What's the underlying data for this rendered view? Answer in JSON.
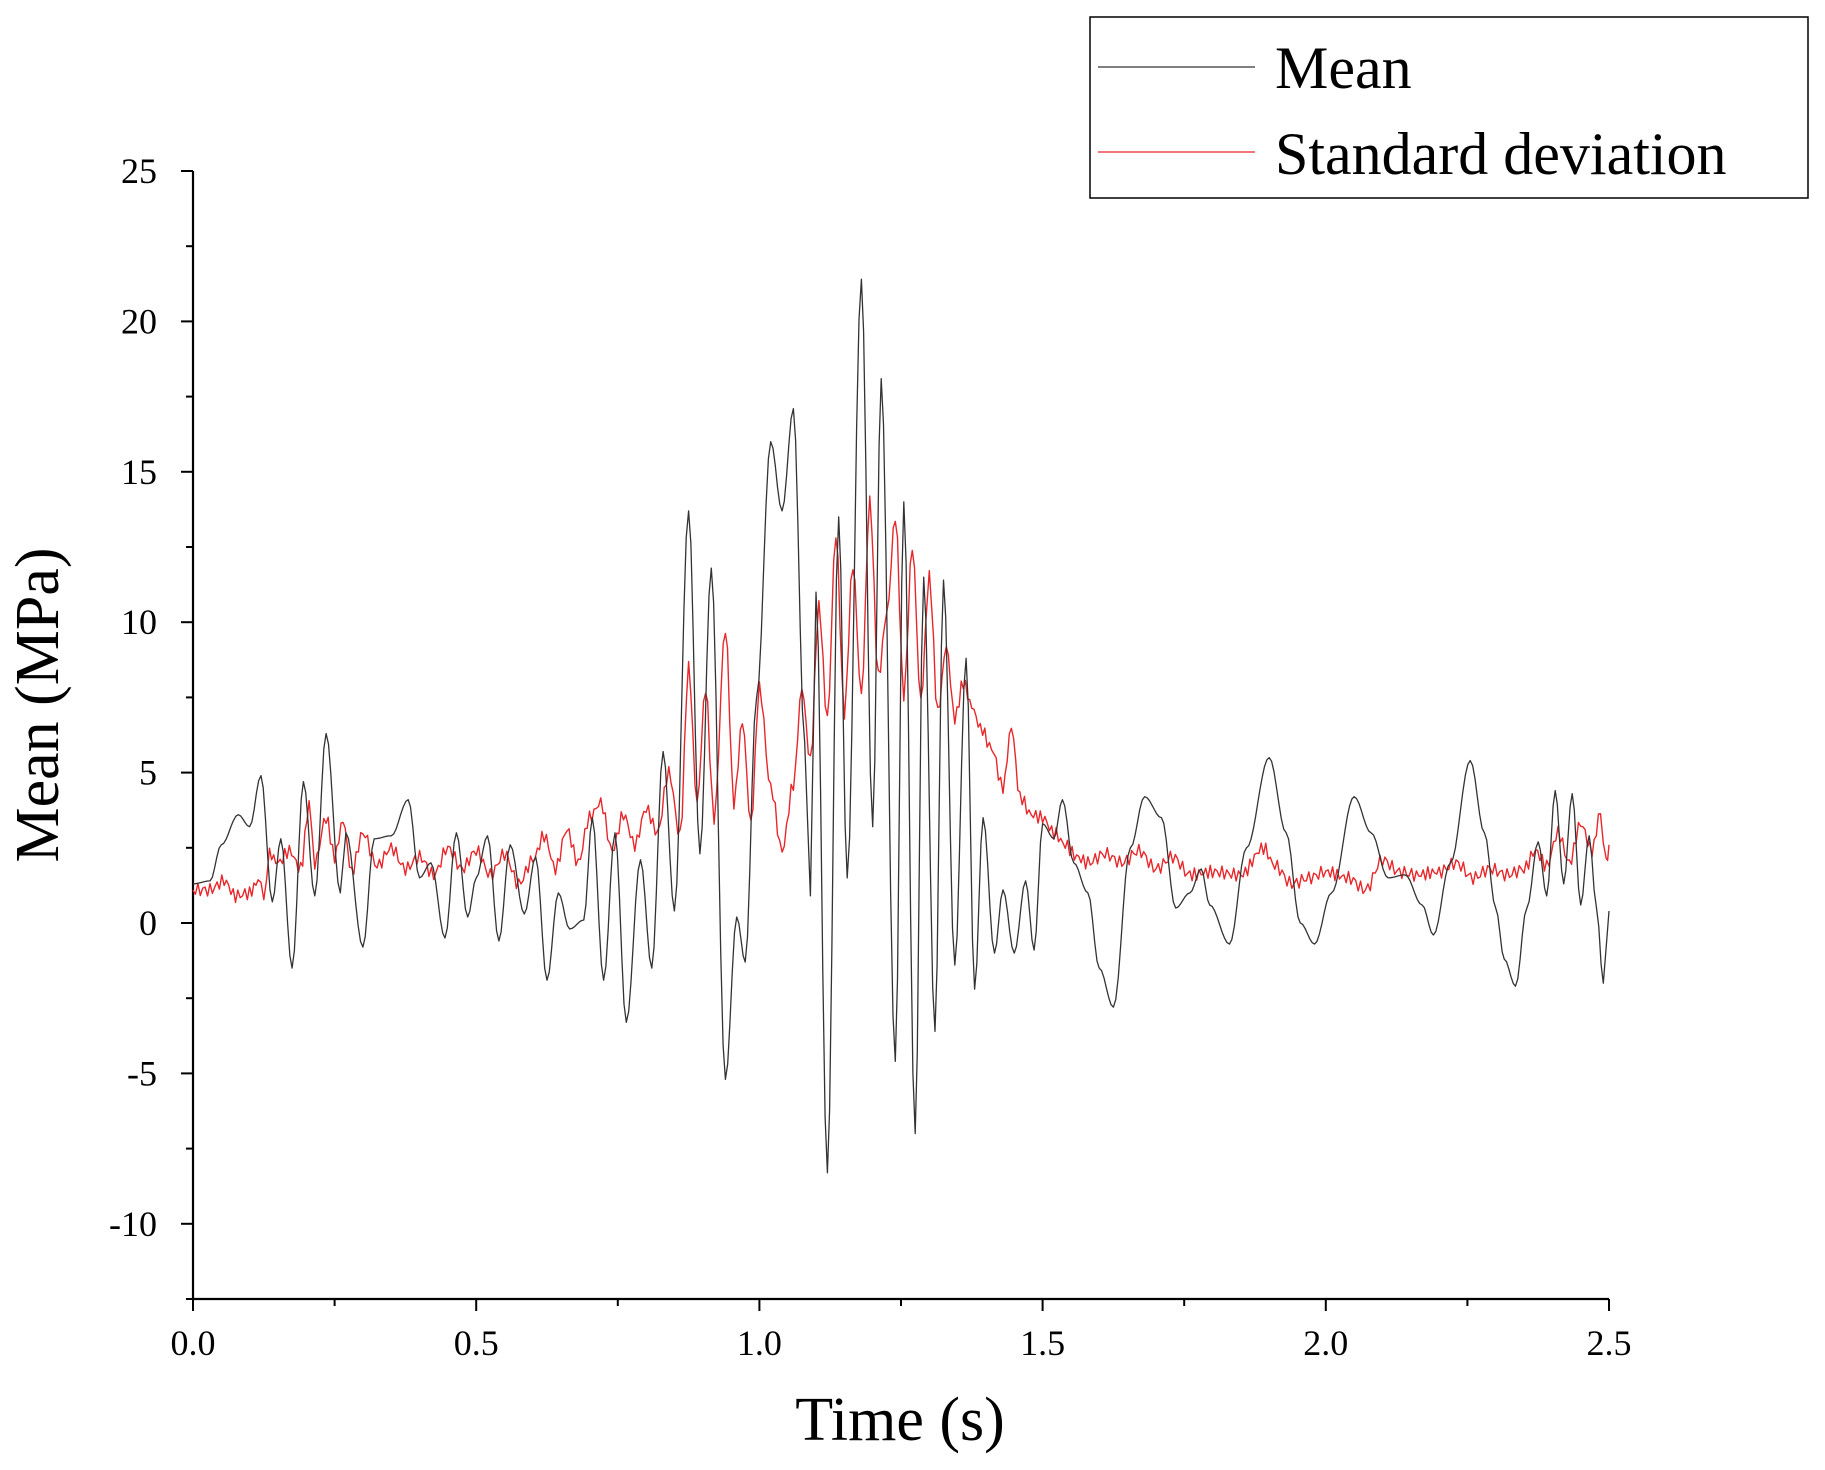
{
  "chart_data": {
    "type": "line",
    "title": "",
    "xlabel": "Time (s)",
    "ylabel": "Mean (MPa)",
    "xlim": [
      0.0,
      2.5
    ],
    "ylim": [
      -12.5,
      25
    ],
    "x_ticks": [
      0.0,
      0.5,
      1.0,
      1.5,
      2.0,
      2.5
    ],
    "x_tick_labels": [
      "0.0",
      "0.5",
      "1.0",
      "1.5",
      "2.0",
      "2.5"
    ],
    "y_ticks": [
      -10,
      -5,
      0,
      5,
      10,
      15,
      20,
      25
    ],
    "y_tick_labels": [
      "-10",
      "-5",
      "0",
      "5",
      "10",
      "15",
      "20",
      "25"
    ],
    "grid": false,
    "legend_position": "top-right",
    "series": [
      {
        "name": "Mean",
        "color": "#333333",
        "points": [
          [
            0.0,
            1.3
          ],
          [
            0.03,
            1.4
          ],
          [
            0.05,
            2.6
          ],
          [
            0.08,
            3.6
          ],
          [
            0.1,
            3.2
          ],
          [
            0.12,
            4.9
          ],
          [
            0.14,
            0.7
          ],
          [
            0.155,
            2.8
          ],
          [
            0.175,
            -1.5
          ],
          [
            0.195,
            4.7
          ],
          [
            0.215,
            0.9
          ],
          [
            0.235,
            6.3
          ],
          [
            0.26,
            1.0
          ],
          [
            0.27,
            3.0
          ],
          [
            0.3,
            -0.8
          ],
          [
            0.32,
            2.8
          ],
          [
            0.35,
            2.9
          ],
          [
            0.38,
            4.1
          ],
          [
            0.4,
            1.5
          ],
          [
            0.42,
            2.0
          ],
          [
            0.445,
            -0.5
          ],
          [
            0.465,
            3.0
          ],
          [
            0.485,
            0.2
          ],
          [
            0.5,
            1.5
          ],
          [
            0.52,
            2.9
          ],
          [
            0.54,
            -0.6
          ],
          [
            0.56,
            2.6
          ],
          [
            0.585,
            0.3
          ],
          [
            0.605,
            2.2
          ],
          [
            0.625,
            -1.9
          ],
          [
            0.645,
            1.0
          ],
          [
            0.665,
            -0.2
          ],
          [
            0.69,
            0.1
          ],
          [
            0.705,
            3.5
          ],
          [
            0.725,
            -1.9
          ],
          [
            0.745,
            3.0
          ],
          [
            0.765,
            -3.3
          ],
          [
            0.79,
            2.1
          ],
          [
            0.81,
            -1.5
          ],
          [
            0.83,
            5.7
          ],
          [
            0.85,
            0.4
          ],
          [
            0.875,
            13.7
          ],
          [
            0.895,
            2.3
          ],
          [
            0.915,
            11.8
          ],
          [
            0.94,
            -5.2
          ],
          [
            0.96,
            0.2
          ],
          [
            0.975,
            -1.3
          ],
          [
            0.995,
            7.5
          ],
          [
            1.02,
            16.0
          ],
          [
            1.04,
            13.7
          ],
          [
            1.06,
            17.1
          ],
          [
            1.08,
            6.0
          ],
          [
            1.09,
            0.9
          ],
          [
            1.1,
            11.0
          ],
          [
            1.12,
            -8.3
          ],
          [
            1.14,
            13.5
          ],
          [
            1.155,
            1.5
          ],
          [
            1.18,
            21.4
          ],
          [
            1.2,
            3.2
          ],
          [
            1.215,
            18.1
          ],
          [
            1.24,
            -4.6
          ],
          [
            1.255,
            14.0
          ],
          [
            1.275,
            -7.0
          ],
          [
            1.29,
            11.5
          ],
          [
            1.31,
            -3.6
          ],
          [
            1.325,
            11.4
          ],
          [
            1.345,
            -1.4
          ],
          [
            1.365,
            8.8
          ],
          [
            1.38,
            -2.2
          ],
          [
            1.395,
            3.5
          ],
          [
            1.415,
            -1.0
          ],
          [
            1.43,
            1.1
          ],
          [
            1.45,
            -1.0
          ],
          [
            1.47,
            1.4
          ],
          [
            1.485,
            -0.9
          ],
          [
            1.5,
            3.3
          ],
          [
            1.52,
            2.8
          ],
          [
            1.535,
            4.1
          ],
          [
            1.555,
            2.0
          ],
          [
            1.58,
            1.0
          ],
          [
            1.6,
            -1.5
          ],
          [
            1.625,
            -2.8
          ],
          [
            1.655,
            2.5
          ],
          [
            1.68,
            4.2
          ],
          [
            1.71,
            3.5
          ],
          [
            1.735,
            0.5
          ],
          [
            1.76,
            1.0
          ],
          [
            1.78,
            1.8
          ],
          [
            1.795,
            0.6
          ],
          [
            1.83,
            -0.7
          ],
          [
            1.86,
            2.5
          ],
          [
            1.9,
            5.5
          ],
          [
            1.93,
            3.0
          ],
          [
            1.955,
            0.0
          ],
          [
            1.98,
            -0.7
          ],
          [
            2.01,
            1.0
          ],
          [
            2.05,
            4.2
          ],
          [
            2.08,
            3.0
          ],
          [
            2.11,
            1.5
          ],
          [
            2.14,
            1.6
          ],
          [
            2.17,
            0.6
          ],
          [
            2.19,
            -0.4
          ],
          [
            2.22,
            2.0
          ],
          [
            2.255,
            5.4
          ],
          [
            2.28,
            3.0
          ],
          [
            2.3,
            0.5
          ],
          [
            2.315,
            -1.2
          ],
          [
            2.335,
            -2.1
          ],
          [
            2.355,
            0.5
          ],
          [
            2.375,
            2.7
          ],
          [
            2.39,
            0.9
          ],
          [
            2.405,
            4.4
          ],
          [
            2.42,
            1.3
          ],
          [
            2.435,
            4.3
          ],
          [
            2.45,
            0.6
          ],
          [
            2.465,
            2.9
          ],
          [
            2.478,
            0.5
          ],
          [
            2.49,
            -2.0
          ],
          [
            2.5,
            0.4
          ]
        ]
      },
      {
        "name": "Standard deviation",
        "color": "#e8272b",
        "points": [
          [
            0.0,
            1.1
          ],
          [
            0.03,
            1.1
          ],
          [
            0.055,
            1.4
          ],
          [
            0.075,
            0.9
          ],
          [
            0.1,
            1.0
          ],
          [
            0.115,
            1.4
          ],
          [
            0.125,
            0.9
          ],
          [
            0.135,
            2.3
          ],
          [
            0.15,
            2.0
          ],
          [
            0.17,
            2.4
          ],
          [
            0.19,
            1.8
          ],
          [
            0.205,
            3.9
          ],
          [
            0.215,
            2.0
          ],
          [
            0.235,
            3.5
          ],
          [
            0.25,
            2.2
          ],
          [
            0.265,
            3.4
          ],
          [
            0.28,
            1.7
          ],
          [
            0.3,
            3.0
          ],
          [
            0.325,
            1.9
          ],
          [
            0.35,
            2.5
          ],
          [
            0.375,
            1.8
          ],
          [
            0.4,
            2.2
          ],
          [
            0.425,
            1.6
          ],
          [
            0.45,
            2.5
          ],
          [
            0.475,
            1.8
          ],
          [
            0.5,
            2.4
          ],
          [
            0.525,
            1.6
          ],
          [
            0.55,
            2.3
          ],
          [
            0.575,
            1.3
          ],
          [
            0.6,
            2.1
          ],
          [
            0.62,
            2.9
          ],
          [
            0.64,
            1.8
          ],
          [
            0.66,
            3.1
          ],
          [
            0.68,
            2.0
          ],
          [
            0.7,
            3.5
          ],
          [
            0.72,
            4.0
          ],
          [
            0.74,
            2.4
          ],
          [
            0.76,
            3.6
          ],
          [
            0.78,
            2.6
          ],
          [
            0.8,
            3.8
          ],
          [
            0.82,
            3.0
          ],
          [
            0.84,
            5.0
          ],
          [
            0.86,
            2.9
          ],
          [
            0.875,
            8.5
          ],
          [
            0.89,
            4.0
          ],
          [
            0.905,
            7.8
          ],
          [
            0.92,
            3.5
          ],
          [
            0.94,
            9.8
          ],
          [
            0.955,
            4.0
          ],
          [
            0.97,
            6.7
          ],
          [
            0.985,
            3.3
          ],
          [
            1.0,
            7.8
          ],
          [
            1.02,
            4.5
          ],
          [
            1.04,
            2.4
          ],
          [
            1.06,
            4.6
          ],
          [
            1.075,
            7.8
          ],
          [
            1.09,
            5.4
          ],
          [
            1.105,
            10.5
          ],
          [
            1.12,
            6.8
          ],
          [
            1.135,
            12.9
          ],
          [
            1.15,
            7.0
          ],
          [
            1.165,
            11.9
          ],
          [
            1.18,
            7.6
          ],
          [
            1.195,
            14.0
          ],
          [
            1.21,
            8.2
          ],
          [
            1.225,
            10.3
          ],
          [
            1.24,
            13.5
          ],
          [
            1.255,
            7.6
          ],
          [
            1.27,
            12.5
          ],
          [
            1.285,
            7.4
          ],
          [
            1.3,
            11.5
          ],
          [
            1.315,
            7.0
          ],
          [
            1.33,
            9.2
          ],
          [
            1.345,
            6.8
          ],
          [
            1.36,
            8.0
          ],
          [
            1.375,
            7.2
          ],
          [
            1.39,
            6.5
          ],
          [
            1.41,
            5.8
          ],
          [
            1.43,
            4.5
          ],
          [
            1.445,
            6.5
          ],
          [
            1.46,
            4.2
          ],
          [
            1.48,
            3.6
          ],
          [
            1.5,
            3.5
          ],
          [
            1.52,
            3.0
          ],
          [
            1.54,
            2.6
          ],
          [
            1.56,
            2.2
          ],
          [
            1.58,
            2.0
          ],
          [
            1.61,
            2.3
          ],
          [
            1.64,
            2.0
          ],
          [
            1.67,
            2.4
          ],
          [
            1.7,
            1.8
          ],
          [
            1.73,
            2.2
          ],
          [
            1.76,
            1.6
          ],
          [
            1.8,
            1.7
          ],
          [
            1.85,
            1.6
          ],
          [
            1.89,
            2.5
          ],
          [
            1.91,
            1.9
          ],
          [
            1.94,
            1.3
          ],
          [
            1.97,
            1.5
          ],
          [
            2.0,
            1.7
          ],
          [
            2.04,
            1.5
          ],
          [
            2.07,
            1.1
          ],
          [
            2.1,
            2.1
          ],
          [
            2.13,
            1.7
          ],
          [
            2.16,
            1.6
          ],
          [
            2.2,
            1.7
          ],
          [
            2.23,
            2.0
          ],
          [
            2.26,
            1.5
          ],
          [
            2.29,
            1.8
          ],
          [
            2.32,
            1.6
          ],
          [
            2.35,
            1.8
          ],
          [
            2.37,
            2.4
          ],
          [
            2.39,
            1.9
          ],
          [
            2.41,
            3.0
          ],
          [
            2.43,
            2.0
          ],
          [
            2.45,
            3.3
          ],
          [
            2.47,
            2.4
          ],
          [
            2.485,
            3.7
          ],
          [
            2.495,
            2.0
          ],
          [
            2.5,
            2.6
          ]
        ]
      }
    ]
  }
}
